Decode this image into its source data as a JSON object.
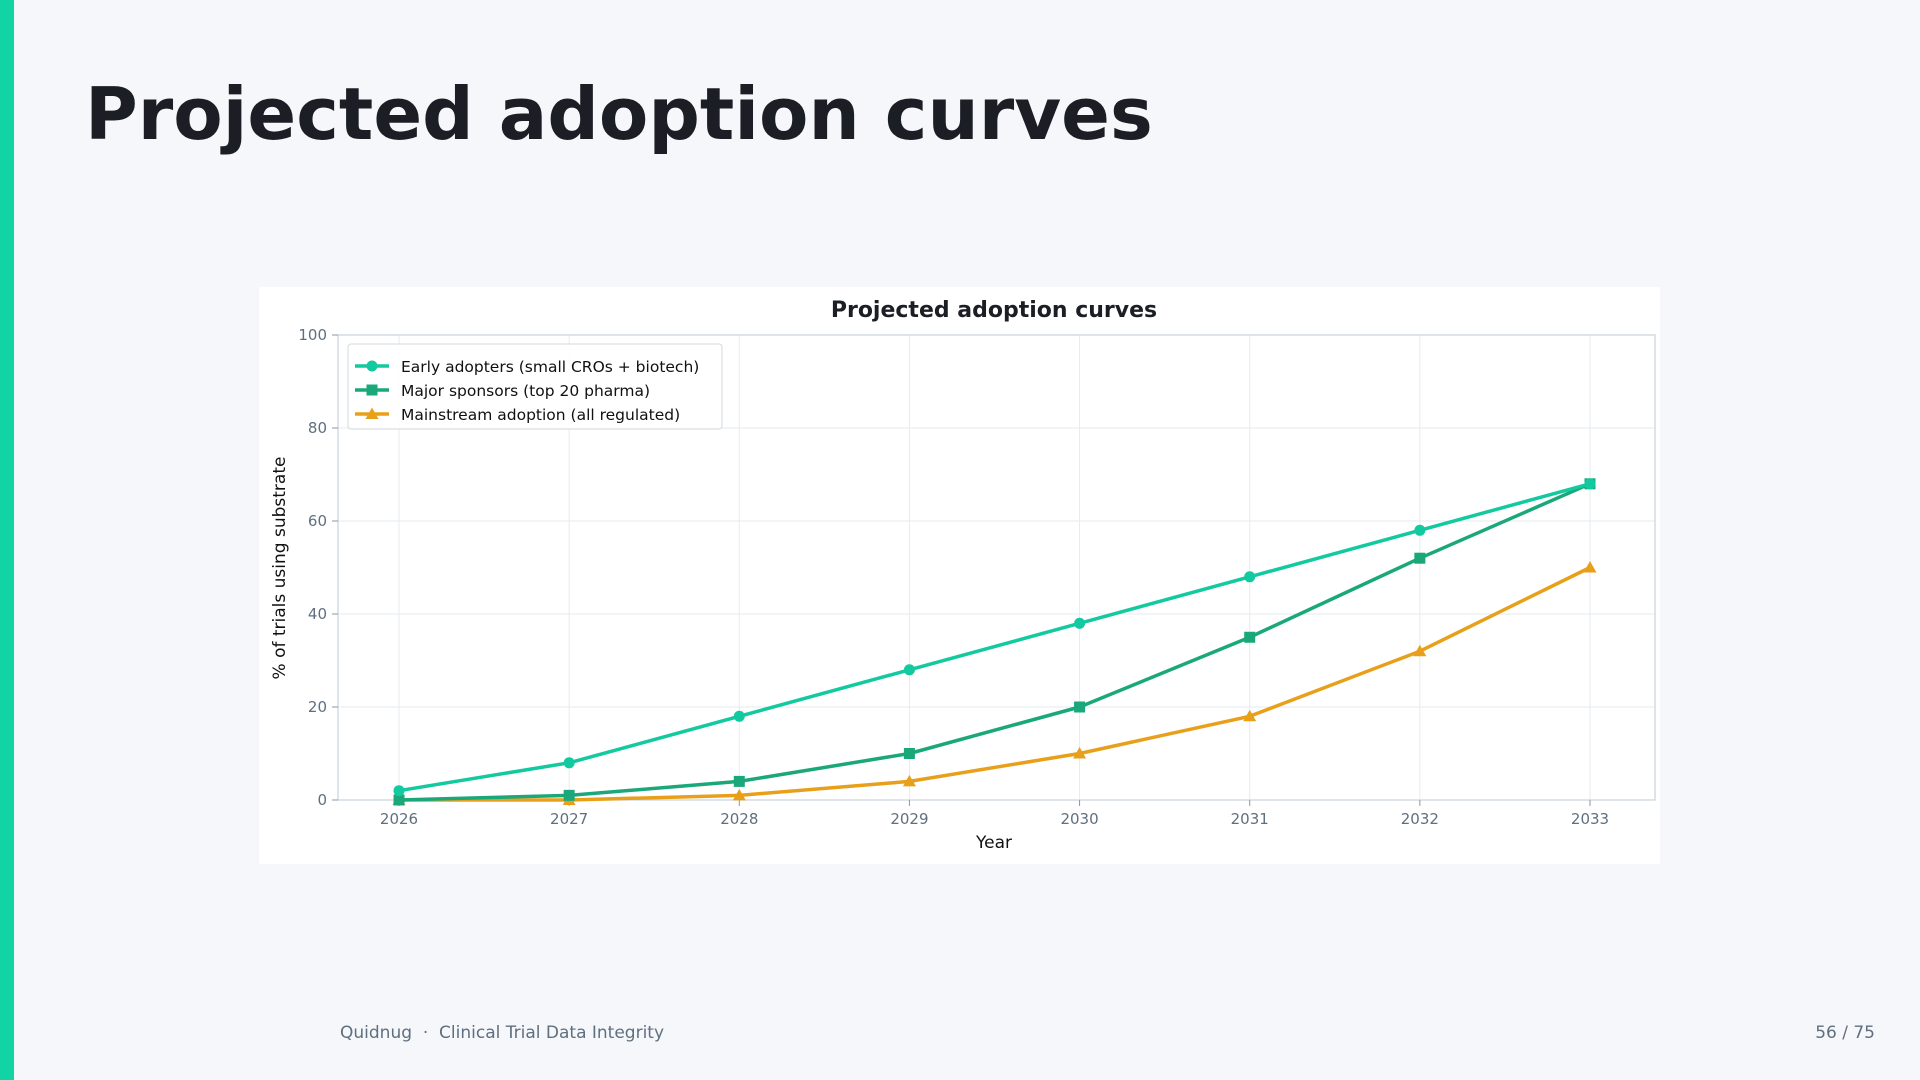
{
  "slide": {
    "title": "Projected adoption curves",
    "footer_brand": "Quidnug",
    "footer_separator": "·",
    "footer_topic": "Clinical Trial Data Integrity",
    "page_indicator": "56 / 75",
    "accent_color": "#12d3a3"
  },
  "chart_data": {
    "type": "line",
    "title": "Projected adoption curves",
    "xlabel": "Year",
    "ylabel": "% of trials using substrate",
    "x": [
      2026,
      2027,
      2028,
      2029,
      2030,
      2031,
      2032,
      2033
    ],
    "ylim": [
      0,
      100
    ],
    "yticks": [
      0,
      20,
      40,
      60,
      80,
      100
    ],
    "grid": true,
    "legend_position": "top-left",
    "series": [
      {
        "name": "Early adopters (small CROs + biotech)",
        "values": [
          2,
          8,
          18,
          28,
          38,
          48,
          58,
          68
        ],
        "color": "#12c9a0",
        "marker": "circle"
      },
      {
        "name": "Major sponsors (top 20 pharma)",
        "values": [
          0,
          1,
          4,
          10,
          20,
          35,
          52,
          68
        ],
        "color": "#1aa87a",
        "marker": "square"
      },
      {
        "name": "Mainstream adoption (all regulated)",
        "values": [
          0,
          0,
          1,
          4,
          10,
          18,
          32,
          50
        ],
        "color": "#e8a01a",
        "marker": "triangle"
      }
    ]
  }
}
